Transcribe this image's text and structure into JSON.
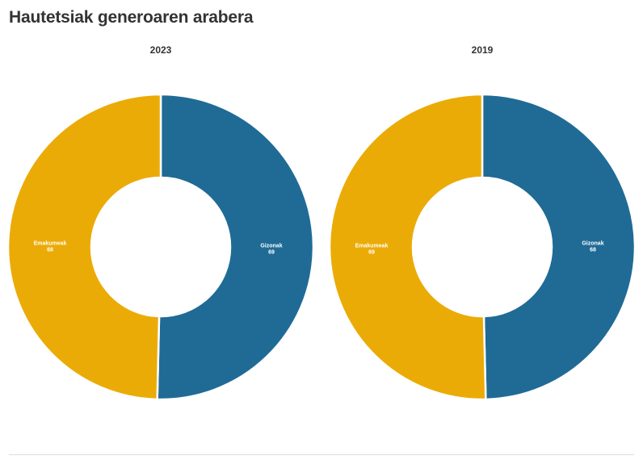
{
  "title": "Hautetsiak generoaren arabera",
  "chart_data": [
    {
      "type": "pie",
      "title": "2023",
      "categories": [
        "Gizonak",
        "Emakumeak"
      ],
      "values": [
        69,
        68
      ],
      "colors": [
        "#1f6b96",
        "#ebab07"
      ]
    },
    {
      "type": "pie",
      "title": "2019",
      "categories": [
        "Gizonak",
        "Emakumeak"
      ],
      "values": [
        68,
        69
      ],
      "colors": [
        "#1f6b96",
        "#ebab07"
      ]
    }
  ]
}
